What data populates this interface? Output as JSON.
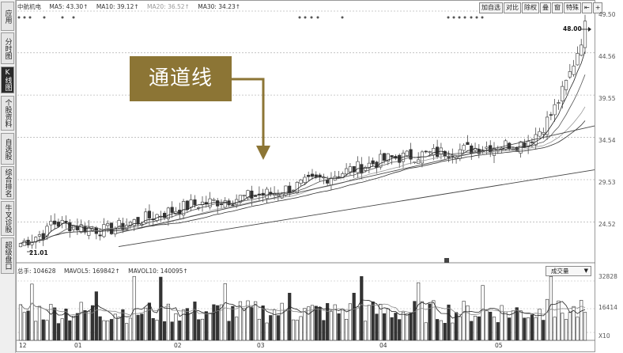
{
  "stock_name": "中航机电",
  "ma_legend": [
    {
      "label": "MA5: 43.30↑",
      "color": "#222222"
    },
    {
      "label": "MA10: 39.12↑",
      "color": "#222222"
    },
    {
      "label": "MA20: 36.52↑",
      "color": "#999999"
    },
    {
      "label": "MA30: 34.23↑",
      "color": "#222222"
    }
  ],
  "toolbar": [
    "加自选",
    "对比",
    "除权",
    "叠",
    "窗",
    "特殊",
    "⇤",
    "+"
  ],
  "sidebar": [
    {
      "label": "应用",
      "active": false
    },
    {
      "label": "分时图",
      "active": false
    },
    {
      "label": "K线图",
      "active": true
    },
    {
      "label": "个股资料",
      "active": false
    },
    {
      "label": "自选股",
      "active": false
    },
    {
      "label": "综合排名",
      "active": false
    },
    {
      "label": "牛叉诊股",
      "active": false
    },
    {
      "label": "超级盘口",
      "active": false
    }
  ],
  "y_axis_labels": [
    "49.50",
    "44.56",
    "39.55",
    "34.54",
    "29.53",
    "24.52"
  ],
  "volume_axis_labels": [
    "32828",
    "16414",
    "X10"
  ],
  "x_axis_labels": [
    "12",
    "01",
    "02",
    "03",
    "04",
    "05"
  ],
  "annotation": "通道线",
  "peak_label": "48.00",
  "low_label": "21.01",
  "volume_legend": [
    {
      "label": "总手: 104628"
    },
    {
      "label": "MAVOL5: 169842↑"
    },
    {
      "label": "MAVOL10: 140095↑"
    }
  ],
  "volume_select": "成交量",
  "chart_data": {
    "type": "candlestick",
    "ylim": [
      21,
      49.5
    ],
    "y_ticks": [
      49.5,
      44.56,
      39.55,
      34.54,
      29.53,
      24.52
    ],
    "x_tick_labels": [
      "12",
      "01",
      "02",
      "03",
      "04",
      "05"
    ],
    "channel_lines": [
      {
        "name": "upper",
        "from": [
          23.2,
          27.2
        ],
        "to": [
          34.8,
          73.6
        ]
      },
      {
        "name": "lower",
        "from": [
          21.6,
          28.2
        ],
        "to": [
          30.7,
          72.0
        ]
      }
    ]
  }
}
